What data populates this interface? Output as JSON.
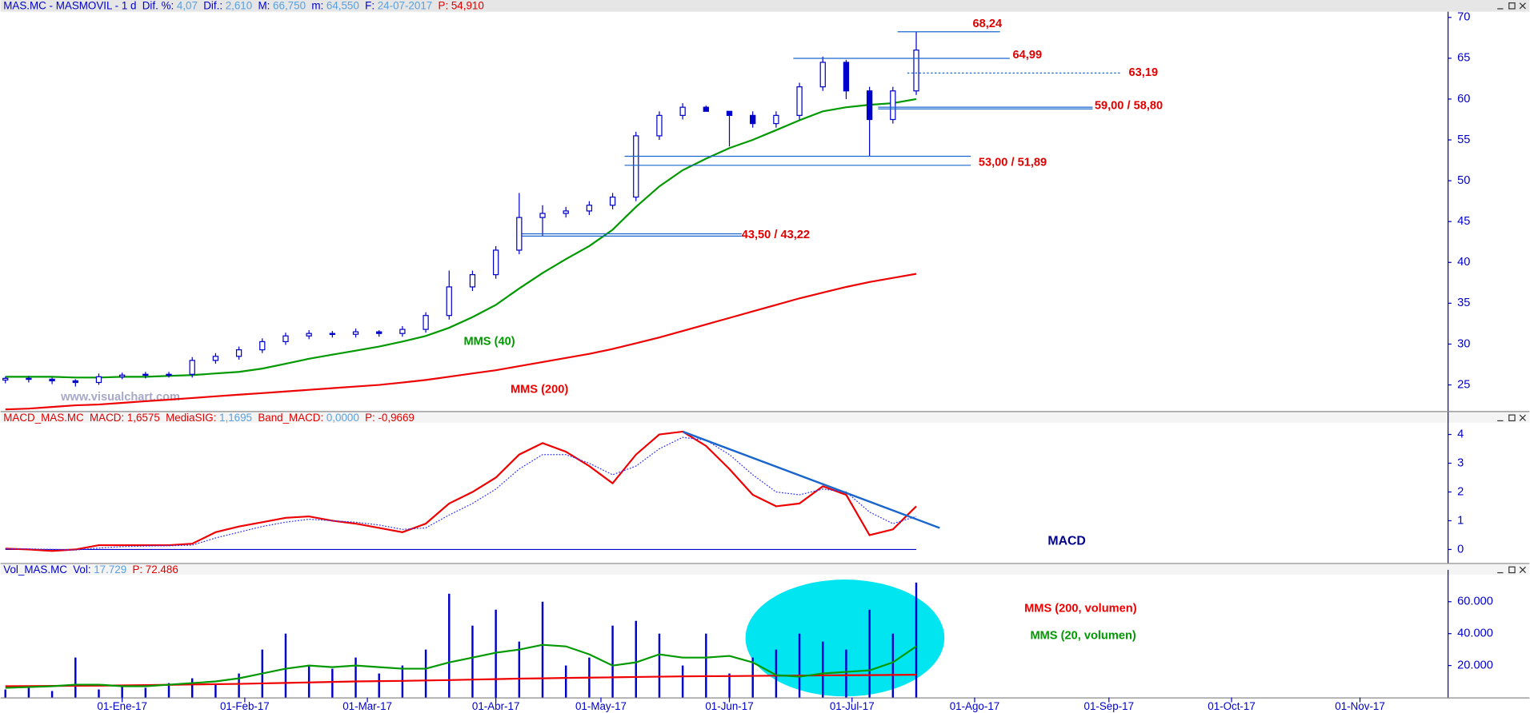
{
  "chart_data": [
    {
      "type": "candlestick",
      "header": {
        "name": "MAS.MC - MASMOVIL -  1 d",
        "fields": [
          {
            "label": "Dif. %:",
            "value": "4,07"
          },
          {
            "label": "Dif.:",
            "value": "2,610"
          },
          {
            "label": "M:",
            "value": "66,750"
          },
          {
            "label": "m:",
            "value": "64,550"
          },
          {
            "label": "F:",
            "value": "24-07-2017"
          },
          {
            "label": "P:",
            "value": "54,910",
            "color": "#e00000"
          }
        ]
      },
      "watermark": "www.visualchart.com",
      "x": [
        -20,
        -16,
        -12,
        -8,
        -4,
        0,
        4,
        8,
        12,
        16,
        20,
        24,
        28,
        32,
        36,
        40,
        44,
        48,
        52,
        56,
        60,
        64,
        68,
        72,
        76,
        80,
        84,
        88,
        92,
        96,
        100,
        104,
        108,
        112,
        116,
        120,
        124,
        128,
        132,
        136
      ],
      "open": [
        25.6,
        25.8,
        25.7,
        25.5,
        25.3,
        26.0,
        26.2,
        26.3,
        26.3,
        28.0,
        28.5,
        29.3,
        30.3,
        31.0,
        31.3,
        31.2,
        31.5,
        31.3,
        31.8,
        33.5,
        37.0,
        38.5,
        41.5,
        45.5,
        46.0,
        46.3,
        47.0,
        48.0,
        55.5,
        58.0,
        59.0,
        58.5,
        58.0,
        57.0,
        58.0,
        61.5,
        64.5,
        61.0,
        57.5,
        61.0
      ],
      "high": [
        26.0,
        26.1,
        25.9,
        25.7,
        26.4,
        26.5,
        26.6,
        26.6,
        28.4,
        28.9,
        29.7,
        30.7,
        31.4,
        31.7,
        31.6,
        31.9,
        31.7,
        32.2,
        33.9,
        39.0,
        39.0,
        42.0,
        48.5,
        47.0,
        46.8,
        47.5,
        48.5,
        56.0,
        58.5,
        59.5,
        59.2,
        58.5,
        58.5,
        58.5,
        62.0,
        65.2,
        64.8,
        61.5,
        61.5,
        68.24
      ],
      "low": [
        25.2,
        25.3,
        25.1,
        24.8,
        25.0,
        25.7,
        25.8,
        25.9,
        25.9,
        27.6,
        28.1,
        28.9,
        29.9,
        30.6,
        30.8,
        30.8,
        30.9,
        30.9,
        31.4,
        33.0,
        36.5,
        38.0,
        41.0,
        43.22,
        45.5,
        45.8,
        46.5,
        47.5,
        55.0,
        57.5,
        58.5,
        54.2,
        56.5,
        56.5,
        57.5,
        61.0,
        60.0,
        53.0,
        57.0,
        60.5
      ],
      "close": [
        25.8,
        25.7,
        25.5,
        25.3,
        26.0,
        26.2,
        26.3,
        26.3,
        28.0,
        28.5,
        29.3,
        30.3,
        31.0,
        31.3,
        31.2,
        31.5,
        31.3,
        31.8,
        33.5,
        37.0,
        38.5,
        41.5,
        45.5,
        46.0,
        46.3,
        47.0,
        48.0,
        55.5,
        58.0,
        59.0,
        58.5,
        58.0,
        57.0,
        58.0,
        61.5,
        64.5,
        61.0,
        57.5,
        61.0,
        66.0
      ],
      "color": "#0000cc",
      "series": [
        {
          "name": "MMS (40)",
          "color": "#009900",
          "values": [
            26.0,
            26.0,
            26.0,
            25.9,
            25.9,
            26.0,
            26.0,
            26.1,
            26.2,
            26.4,
            26.6,
            27.0,
            27.6,
            28.2,
            28.7,
            29.2,
            29.7,
            30.3,
            31.0,
            32.0,
            33.3,
            34.8,
            36.8,
            38.7,
            40.4,
            42.0,
            44.0,
            46.8,
            49.3,
            51.3,
            52.7,
            54.0,
            55.0,
            56.2,
            57.4,
            58.5,
            59.0,
            59.3,
            59.5,
            60.0
          ]
        },
        {
          "name": "MMS (200)",
          "color": "#ee0000",
          "values": [
            22.0,
            22.1,
            22.3,
            22.5,
            22.6,
            22.8,
            23.0,
            23.2,
            23.4,
            23.6,
            23.8,
            24.0,
            24.2,
            24.4,
            24.6,
            24.8,
            25.0,
            25.3,
            25.6,
            26.0,
            26.4,
            26.8,
            27.3,
            27.8,
            28.3,
            28.8,
            29.4,
            30.1,
            30.8,
            31.6,
            32.4,
            33.2,
            34.0,
            34.8,
            35.6,
            36.3,
            37.0,
            37.6,
            38.1,
            38.6
          ]
        }
      ],
      "annotations": [
        {
          "label": "68,24",
          "values": [
            68.24
          ]
        },
        {
          "label": "64,99",
          "values": [
            64.99
          ]
        },
        {
          "label": "63,19",
          "values": [
            63.19
          ],
          "dashed": true
        },
        {
          "label": "59,00 / 58,80",
          "values": [
            59.0,
            58.8
          ]
        },
        {
          "label": "53,00 / 51,89",
          "values": [
            53.0,
            51.89
          ]
        },
        {
          "label": "43,50 / 43,22",
          "values": [
            43.5,
            43.22
          ]
        }
      ],
      "xlim": [
        -20,
        227
      ],
      "ylim": [
        21.8,
        70.7
      ],
      "yticks": [
        25,
        30,
        35,
        40,
        45,
        50,
        55,
        60,
        65,
        70
      ]
    },
    {
      "type": "line",
      "header": {
        "name": "MACD_MAS.MC",
        "color": "#e00000",
        "fields": [
          {
            "label": "MACD:",
            "value": "1,6575",
            "color": "#e00000"
          },
          {
            "label": "MediaSIG:",
            "value": "1,1695"
          },
          {
            "label": "Band_MACD:",
            "value": "0,0000"
          },
          {
            "label": "P:",
            "value": "-0,9669",
            "color": "#e00000"
          }
        ]
      },
      "label": "MACD",
      "x": [
        -20,
        -16,
        -12,
        -8,
        -4,
        0,
        4,
        8,
        12,
        16,
        20,
        24,
        28,
        32,
        36,
        40,
        44,
        48,
        52,
        56,
        60,
        64,
        68,
        72,
        76,
        80,
        84,
        88,
        92,
        96,
        100,
        104,
        108,
        112,
        116,
        120,
        124,
        128,
        132,
        136
      ],
      "series": [
        {
          "color": "#ee0000",
          "values": [
            0.03,
            0.0,
            -0.05,
            0.0,
            0.15,
            0.15,
            0.15,
            0.15,
            0.2,
            0.6,
            0.8,
            0.95,
            1.1,
            1.15,
            1.0,
            0.9,
            0.75,
            0.6,
            0.9,
            1.6,
            2.0,
            2.5,
            3.3,
            3.7,
            3.4,
            2.9,
            2.3,
            3.3,
            4.0,
            4.1,
            3.6,
            2.8,
            1.9,
            1.5,
            1.6,
            2.2,
            1.9,
            0.5,
            0.7,
            1.5
          ]
        },
        {
          "color": "#3333ff",
          "dotted": true,
          "values": [
            0.02,
            0.02,
            0.0,
            -0.02,
            0.05,
            0.1,
            0.12,
            0.13,
            0.15,
            0.4,
            0.6,
            0.8,
            0.95,
            1.05,
            1.0,
            0.95,
            0.85,
            0.7,
            0.75,
            1.2,
            1.6,
            2.1,
            2.8,
            3.3,
            3.3,
            3.0,
            2.6,
            2.9,
            3.5,
            3.9,
            3.8,
            3.3,
            2.6,
            2.0,
            1.9,
            2.1,
            2.0,
            1.3,
            0.9,
            1.15
          ]
        }
      ],
      "trendline": {
        "x": [
          96,
          140
        ],
        "values": [
          4.1,
          0.75
        ],
        "color": "#1a66cc"
      },
      "xlim": [
        -20,
        227
      ],
      "ylim": [
        -0.47,
        4.78
      ],
      "yticks": [
        0,
        1,
        2,
        3,
        4
      ]
    },
    {
      "type": "bar",
      "header": {
        "name": "Vol_MAS.MC",
        "fields": [
          {
            "label": "Vol:",
            "value": "17.729"
          },
          {
            "label": "P:",
            "value": "72.486",
            "color": "#e00000"
          }
        ]
      },
      "x": [
        -20,
        -16,
        -12,
        -8,
        -4,
        0,
        4,
        8,
        12,
        16,
        20,
        24,
        28,
        32,
        36,
        40,
        44,
        48,
        52,
        56,
        60,
        64,
        68,
        72,
        76,
        80,
        84,
        88,
        92,
        96,
        100,
        104,
        108,
        112,
        116,
        120,
        124,
        128,
        132,
        136
      ],
      "values": [
        5000,
        6000,
        4000,
        25000,
        5000,
        8000,
        6000,
        9000,
        12000,
        8000,
        15000,
        30000,
        40000,
        20000,
        18000,
        25000,
        15000,
        20000,
        30000,
        65000,
        45000,
        55000,
        35000,
        60000,
        20000,
        25000,
        45000,
        48000,
        40000,
        20000,
        40000,
        15000,
        25000,
        30000,
        40000,
        35000,
        30000,
        55000,
        40000,
        72000
      ],
      "color": "#0000cc",
      "series": [
        {
          "name": "MMS (200, volumen)",
          "color": "#ee0000",
          "values": [
            7000,
            7100,
            7200,
            7300,
            7400,
            7500,
            7700,
            7900,
            8100,
            8300,
            8500,
            8800,
            9100,
            9400,
            9700,
            10000,
            10200,
            10400,
            10600,
            10900,
            11200,
            11500,
            11800,
            12000,
            12200,
            12400,
            12600,
            12800,
            13000,
            13200,
            13300,
            13400,
            13500,
            13600,
            13700,
            13800,
            13900,
            14000,
            14100,
            14200
          ]
        },
        {
          "name": "MMS (20, volumen)",
          "color": "#009900",
          "values": [
            6000,
            6500,
            7000,
            8000,
            8000,
            7000,
            7000,
            8000,
            9000,
            10000,
            12000,
            15000,
            18000,
            20000,
            19000,
            20000,
            19000,
            18000,
            18000,
            22000,
            25000,
            28000,
            30000,
            33000,
            32000,
            27000,
            20000,
            22000,
            27000,
            25000,
            25000,
            26000,
            22000,
            14000,
            13000,
            15000,
            16000,
            17000,
            22000,
            32000
          ]
        }
      ],
      "xlim": [
        -20,
        227
      ],
      "ylim": [
        0,
        80000
      ],
      "yticks": [
        {
          "value": 20000,
          "label": "20.000"
        },
        {
          "value": 40000,
          "label": "40.000"
        },
        {
          "value": 60000,
          "label": "60.000"
        }
      ],
      "xticks": [
        {
          "value": 0,
          "label": "01-Ene-17"
        },
        {
          "value": 21,
          "label": "01-Feb-17"
        },
        {
          "value": 42,
          "label": "01-Mar-17"
        },
        {
          "value": 64,
          "label": "01-Abr-17"
        },
        {
          "value": 82,
          "label": "01-May-17"
        },
        {
          "value": 104,
          "label": "01-Jun-17"
        },
        {
          "value": 125,
          "label": "01-Jul-17"
        },
        {
          "value": 146,
          "label": "01-Ago-17"
        },
        {
          "value": 169,
          "label": "01-Sep-17"
        },
        {
          "value": 190,
          "label": "01-Oct-17"
        },
        {
          "value": 212,
          "label": "01-Nov-17"
        }
      ]
    }
  ]
}
